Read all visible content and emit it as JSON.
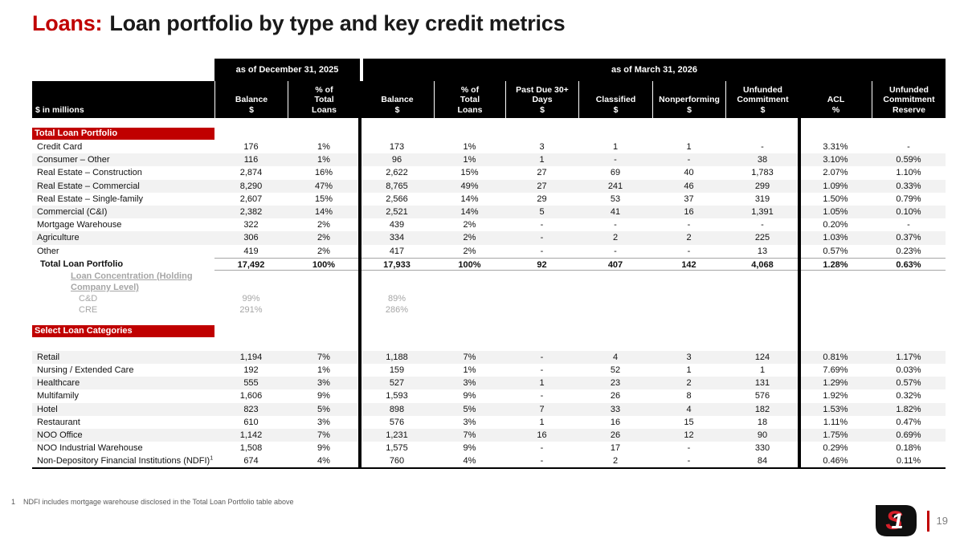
{
  "title": {
    "prefix": "Loans:",
    "rest": "Loan portfolio by type and key credit metrics"
  },
  "colors": {
    "accent_red": "#C00000",
    "row_shade": "#F2F2F2",
    "muted_gray": "#A6A6A6",
    "header_black": "#000000",
    "logo_red": "#D81F2A"
  },
  "table": {
    "units_label": "$ in millions",
    "group_headers": [
      "as of December 31, 2025",
      "as of March 31, 2026"
    ],
    "column_headers": [
      "Balance\n$",
      "% of\nTotal\nLoans",
      "Balance\n$",
      "% of\nTotal\nLoans",
      "Past Due 30+\nDays\n$",
      "Classified\n$",
      "Nonperforming\n$",
      "Unfunded\nCommitment\n$",
      "ACL\n%",
      "Unfunded\nCommitment\nReserve"
    ],
    "sections": [
      {
        "header": "Total Loan Portfolio",
        "rows": [
          {
            "label": "Credit Card",
            "shaded": false,
            "values": [
              "176",
              "1%",
              "173",
              "1%",
              "3",
              "1",
              "1",
              "-",
              "3.31%",
              "-"
            ]
          },
          {
            "label": "Consumer – Other",
            "shaded": true,
            "values": [
              "116",
              "1%",
              "96",
              "1%",
              "1",
              "-",
              "-",
              "38",
              "3.10%",
              "0.59%"
            ]
          },
          {
            "label": "Real Estate – Construction",
            "shaded": false,
            "values": [
              "2,874",
              "16%",
              "2,622",
              "15%",
              "27",
              "69",
              "40",
              "1,783",
              "2.07%",
              "1.10%"
            ]
          },
          {
            "label": "Real Estate – Commercial",
            "shaded": true,
            "values": [
              "8,290",
              "47%",
              "8,765",
              "49%",
              "27",
              "241",
              "46",
              "299",
              "1.09%",
              "0.33%"
            ]
          },
          {
            "label": "Real Estate – Single-family",
            "shaded": false,
            "values": [
              "2,607",
              "15%",
              "2,566",
              "14%",
              "29",
              "53",
              "37",
              "319",
              "1.50%",
              "0.79%"
            ]
          },
          {
            "label": "Commercial (C&I)",
            "shaded": true,
            "values": [
              "2,382",
              "14%",
              "2,521",
              "14%",
              "5",
              "41",
              "16",
              "1,391",
              "1.05%",
              "0.10%"
            ]
          },
          {
            "label": "Mortgage Warehouse",
            "shaded": false,
            "values": [
              "322",
              "2%",
              "439",
              "2%",
              "-",
              "-",
              "-",
              "-",
              "0.20%",
              "-"
            ]
          },
          {
            "label": "Agriculture",
            "shaded": true,
            "values": [
              "306",
              "2%",
              "334",
              "2%",
              "-",
              "2",
              "2",
              "225",
              "1.03%",
              "0.37%"
            ]
          },
          {
            "label": "Other",
            "shaded": false,
            "values": [
              "419",
              "2%",
              "417",
              "2%",
              "-",
              "-",
              "-",
              "13",
              "0.57%",
              "0.23%"
            ]
          },
          {
            "label": "Total Loan Portfolio",
            "shaded": false,
            "total": true,
            "values": [
              "17,492",
              "100%",
              "17,933",
              "100%",
              "92",
              "407",
              "142",
              "4,068",
              "1.28%",
              "0.63%"
            ]
          }
        ],
        "concentration": {
          "label_lines": [
            "Loan Concentration (Holding",
            "Company Level)"
          ],
          "rows": [
            {
              "label": "C&D",
              "values": [
                "99%",
                "",
                "89%",
                "",
                "",
                "",
                "",
                "",
                "",
                ""
              ]
            },
            {
              "label": "CRE",
              "values": [
                "291%",
                "",
                "286%",
                "",
                "",
                "",
                "",
                "",
                "",
                ""
              ]
            }
          ]
        }
      },
      {
        "header": "Select Loan Categories",
        "rows": [
          {
            "label": "Retail",
            "shaded": true,
            "values": [
              "1,194",
              "7%",
              "1,188",
              "7%",
              "-",
              "4",
              "3",
              "124",
              "0.81%",
              "1.17%"
            ]
          },
          {
            "label": "Nursing / Extended Care",
            "shaded": false,
            "values": [
              "192",
              "1%",
              "159",
              "1%",
              "-",
              "52",
              "1",
              "1",
              "7.69%",
              "0.03%"
            ]
          },
          {
            "label": "Healthcare",
            "shaded": true,
            "values": [
              "555",
              "3%",
              "527",
              "3%",
              "1",
              "23",
              "2",
              "131",
              "1.29%",
              "0.57%"
            ]
          },
          {
            "label": "Multifamily",
            "shaded": false,
            "values": [
              "1,606",
              "9%",
              "1,593",
              "9%",
              "-",
              "26",
              "8",
              "576",
              "1.92%",
              "0.32%"
            ]
          },
          {
            "label": "Hotel",
            "shaded": true,
            "values": [
              "823",
              "5%",
              "898",
              "5%",
              "7",
              "33",
              "4",
              "182",
              "1.53%",
              "1.82%"
            ]
          },
          {
            "label": "Restaurant",
            "shaded": false,
            "values": [
              "610",
              "3%",
              "576",
              "3%",
              "1",
              "16",
              "15",
              "18",
              "1.11%",
              "0.47%"
            ]
          },
          {
            "label": "NOO Office",
            "shaded": true,
            "values": [
              "1,142",
              "7%",
              "1,231",
              "7%",
              "16",
              "26",
              "12",
              "90",
              "1.75%",
              "0.69%"
            ]
          },
          {
            "label": "NOO Industrial Warehouse",
            "shaded": false,
            "values": [
              "1,508",
              "9%",
              "1,575",
              "9%",
              "-",
              "17",
              "-",
              "330",
              "0.29%",
              "0.18%"
            ]
          },
          {
            "label": "Non-Depository Financial Institutions (NDFI)",
            "label_sup": "1",
            "shaded": false,
            "values": [
              "674",
              "4%",
              "760",
              "4%",
              "-",
              "2",
              "-",
              "84",
              "0.46%",
              "0.11%"
            ]
          }
        ]
      }
    ]
  },
  "footnote": {
    "number": "1",
    "text": "NDFI includes mortgage warehouse disclosed in the Total Loan Portfolio table above"
  },
  "footer": {
    "page_number": "19",
    "logo_text": "S1"
  }
}
